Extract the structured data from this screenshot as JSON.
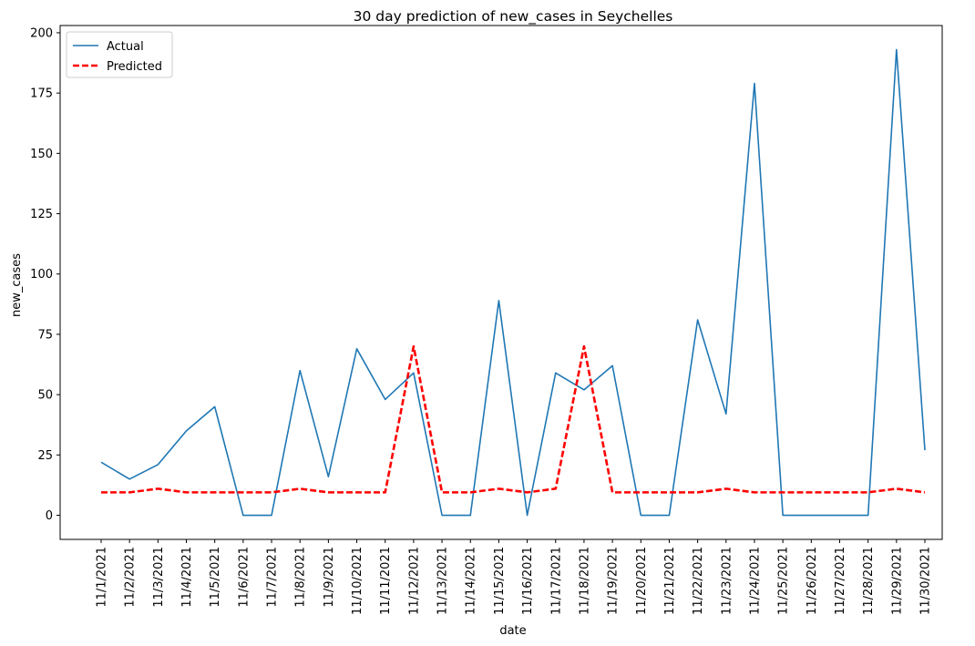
{
  "chart_data": {
    "type": "line",
    "title": "30 day prediction of new_cases in Seychelles",
    "xlabel": "date",
    "ylabel": "new_cases",
    "ylim": [
      -10,
      203
    ],
    "yticks": [
      0,
      25,
      50,
      75,
      100,
      125,
      150,
      175,
      200
    ],
    "grid": false,
    "legend_position": "top-left",
    "categories": [
      "11/1/2021",
      "11/2/2021",
      "11/3/2021",
      "11/4/2021",
      "11/5/2021",
      "11/6/2021",
      "11/7/2021",
      "11/8/2021",
      "11/9/2021",
      "11/10/2021",
      "11/11/2021",
      "11/12/2021",
      "11/13/2021",
      "11/14/2021",
      "11/15/2021",
      "11/16/2021",
      "11/17/2021",
      "11/18/2021",
      "11/19/2021",
      "11/20/2021",
      "11/21/2021",
      "11/22/2021",
      "11/23/2021",
      "11/24/2021",
      "11/25/2021",
      "11/26/2021",
      "11/27/2021",
      "11/28/2021",
      "11/29/2021",
      "11/30/2021"
    ],
    "series": [
      {
        "name": "Actual",
        "color": "#1f77b4",
        "style": "solid",
        "values": [
          22,
          15,
          21,
          35,
          45,
          0,
          0,
          60,
          16,
          69,
          48,
          59,
          0,
          0,
          89,
          0,
          59,
          52,
          62,
          0,
          0,
          81,
          42,
          179,
          0,
          0,
          0,
          0,
          193,
          27
        ]
      },
      {
        "name": "Predicted",
        "color": "#ff0000",
        "style": "dashed",
        "values": [
          9.5,
          9.5,
          11,
          9.5,
          9.5,
          9.5,
          9.5,
          11,
          9.5,
          9.5,
          9.5,
          70,
          9.5,
          9.5,
          11,
          9.5,
          11,
          70,
          9.5,
          9.5,
          9.5,
          9.5,
          11,
          9.5,
          9.5,
          9.5,
          9.5,
          9.5,
          11,
          9.5
        ]
      }
    ]
  }
}
